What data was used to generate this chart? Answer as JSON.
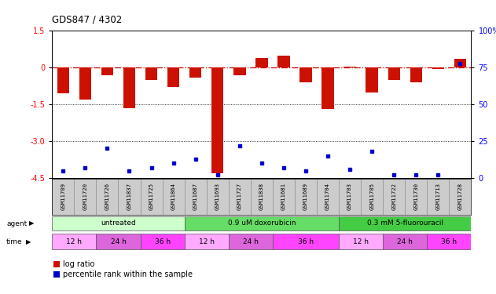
{
  "title": "GDS847 / 4302",
  "samples": [
    "GSM11709",
    "GSM11720",
    "GSM11726",
    "GSM11837",
    "GSM11725",
    "GSM11864",
    "GSM11687",
    "GSM11693",
    "GSM11727",
    "GSM11838",
    "GSM11681",
    "GSM11689",
    "GSM11704",
    "GSM11703",
    "GSM11705",
    "GSM11722",
    "GSM11730",
    "GSM11713",
    "GSM11728"
  ],
  "log_ratio": [
    -1.05,
    -1.3,
    -0.3,
    -1.65,
    -0.5,
    -0.8,
    -0.4,
    -4.3,
    -0.3,
    0.4,
    0.5,
    -0.6,
    -1.7,
    0.05,
    -1.0,
    -0.5,
    -0.6,
    -0.05,
    0.35
  ],
  "percentile": [
    5,
    7,
    20,
    5,
    7,
    10,
    13,
    2,
    22,
    10,
    7,
    5,
    15,
    6,
    18,
    2,
    2,
    2,
    78
  ],
  "agent_groups": [
    {
      "label": "untreated",
      "start": 0,
      "end": 6,
      "color": "#ccffcc"
    },
    {
      "label": "0.9 uM doxorubicin",
      "start": 6,
      "end": 13,
      "color": "#66dd66"
    },
    {
      "label": "0.3 mM 5-fluorouracil",
      "start": 13,
      "end": 19,
      "color": "#44cc44"
    }
  ],
  "time_groups": [
    {
      "label": "12 h",
      "start": 0,
      "end": 2,
      "color": "#ffaaff"
    },
    {
      "label": "24 h",
      "start": 2,
      "end": 4,
      "color": "#dd66dd"
    },
    {
      "label": "36 h",
      "start": 4,
      "end": 6,
      "color": "#ff44ff"
    },
    {
      "label": "12 h",
      "start": 6,
      "end": 8,
      "color": "#ffaaff"
    },
    {
      "label": "24 h",
      "start": 8,
      "end": 10,
      "color": "#dd66dd"
    },
    {
      "label": "36 h",
      "start": 10,
      "end": 13,
      "color": "#ff44ff"
    },
    {
      "label": "12 h",
      "start": 13,
      "end": 15,
      "color": "#ffaaff"
    },
    {
      "label": "24 h",
      "start": 15,
      "end": 17,
      "color": "#dd66dd"
    },
    {
      "label": "36 h",
      "start": 17,
      "end": 19,
      "color": "#ff44ff"
    }
  ],
  "ylim": [
    -4.5,
    1.5
  ],
  "yticks_left": [
    1.5,
    0,
    -1.5,
    -3.0,
    -4.5
  ],
  "yticks_right": [
    100,
    75,
    50,
    25,
    0
  ],
  "zero_line_color": "#cc0000",
  "bar_color": "#cc1100",
  "dot_color": "#0000cc",
  "bg_color": "#ffffff",
  "grid_lines": [
    -1.5,
    -3.0
  ],
  "bar_width": 0.55
}
